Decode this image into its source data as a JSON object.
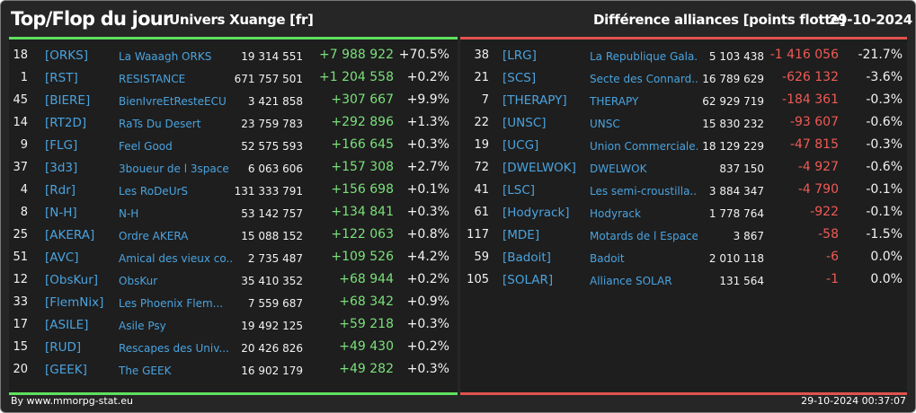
{
  "header": {
    "title": "Top/Flop du jour",
    "server": "Univers Xuange [fr]",
    "description": "Différence alliances [points flotte]",
    "date": "29-10-2024"
  },
  "colors": {
    "top_accent": "#5fe05f",
    "flop_accent": "#e0534f",
    "tag_color": "#4aa3df"
  },
  "top": [
    {
      "rank": "18",
      "tag": "[ORKS]",
      "name": "La Waaagh ORKS",
      "score": "19 314 551",
      "diff": "+7 988 922",
      "pct": "+70.5%"
    },
    {
      "rank": "1",
      "tag": "[RST]",
      "name": "RESISTANCE",
      "score": "671 757 501",
      "diff": "+1 204 558",
      "pct": "+0.2%"
    },
    {
      "rank": "45",
      "tag": "[BIERE]",
      "name": "BienIvreEtResteECU",
      "score": "3 421 858",
      "diff": "+307 667",
      "pct": "+9.9%"
    },
    {
      "rank": "14",
      "tag": "[RT2D]",
      "name": "RaTs Du Desert",
      "score": "23 759 783",
      "diff": "+292 896",
      "pct": "+1.3%"
    },
    {
      "rank": "9",
      "tag": "[FLG]",
      "name": "Feel Good",
      "score": "52 575 593",
      "diff": "+166 645",
      "pct": "+0.3%"
    },
    {
      "rank": "37",
      "tag": "[3d3]",
      "name": "3boueur de l 3space",
      "score": "6 063 606",
      "diff": "+157 308",
      "pct": "+2.7%"
    },
    {
      "rank": "4",
      "tag": "[Rdr]",
      "name": "Les RoDeUrS",
      "score": "131 333 791",
      "diff": "+156 698",
      "pct": "+0.1%"
    },
    {
      "rank": "8",
      "tag": "[N-H]",
      "name": "N-H",
      "score": "53 142 757",
      "diff": "+134 841",
      "pct": "+0.3%"
    },
    {
      "rank": "25",
      "tag": "[AKERA]",
      "name": "Ordre AKERA",
      "score": "15 088 152",
      "diff": "+122 063",
      "pct": "+0.8%"
    },
    {
      "rank": "51",
      "tag": "[AVC]",
      "name": "Amical des vieux co...",
      "score": "2 735 487",
      "diff": "+109 526",
      "pct": "+4.2%"
    },
    {
      "rank": "12",
      "tag": "[ObsKur]",
      "name": "ObsKur",
      "score": "35 410 352",
      "diff": "+68 944",
      "pct": "+0.2%"
    },
    {
      "rank": "33",
      "tag": "[FlemNix]",
      "name": "Les Phoenix Flem...",
      "score": "7 559 687",
      "diff": "+68 342",
      "pct": "+0.9%"
    },
    {
      "rank": "17",
      "tag": "[ASILE]",
      "name": "Asile Psy",
      "score": "19 492 125",
      "diff": "+59 218",
      "pct": "+0.3%"
    },
    {
      "rank": "15",
      "tag": "[RUD]",
      "name": "Rescapes des Univ...",
      "score": "20 426 826",
      "diff": "+49 430",
      "pct": "+0.2%"
    },
    {
      "rank": "20",
      "tag": "[GEEK]",
      "name": "The GEEK",
      "score": "16 902 179",
      "diff": "+49 282",
      "pct": "+0.3%"
    }
  ],
  "flop": [
    {
      "rank": "38",
      "tag": "[LRG]",
      "name": "La Republique Gala...",
      "score": "5 103 438",
      "diff": "-1 416 056",
      "pct": "-21.7%"
    },
    {
      "rank": "21",
      "tag": "[SCS]",
      "name": "Secte des Connard...",
      "score": "16 789 629",
      "diff": "-626 132",
      "pct": "-3.6%"
    },
    {
      "rank": "7",
      "tag": "[THERAPY]",
      "name": "THERAPY",
      "score": "62 929 719",
      "diff": "-184 361",
      "pct": "-0.3%"
    },
    {
      "rank": "22",
      "tag": "[UNSC]",
      "name": "UNSC",
      "score": "15 830 232",
      "diff": "-93 607",
      "pct": "-0.6%"
    },
    {
      "rank": "19",
      "tag": "[UCG]",
      "name": "Union Commerciale...",
      "score": "18 129 229",
      "diff": "-47 815",
      "pct": "-0.3%"
    },
    {
      "rank": "72",
      "tag": "[DWELWOK]",
      "name": "DWELWOK",
      "score": "837 150",
      "diff": "-4 927",
      "pct": "-0.6%"
    },
    {
      "rank": "41",
      "tag": "[LSC]",
      "name": "Les semi-croustilla...",
      "score": "3 884 347",
      "diff": "-4 790",
      "pct": "-0.1%"
    },
    {
      "rank": "61",
      "tag": "[Hodyrack]",
      "name": "Hodyrack",
      "score": "1 778 764",
      "diff": "-922",
      "pct": "-0.1%"
    },
    {
      "rank": "117",
      "tag": "[MDE]",
      "name": "Motards de l Espace",
      "score": "3 867",
      "diff": "-58",
      "pct": "-1.5%"
    },
    {
      "rank": "59",
      "tag": "[Badoit]",
      "name": "Badoit",
      "score": "2 010 118",
      "diff": "-6",
      "pct": "0.0%"
    },
    {
      "rank": "105",
      "tag": "[SOLAR]",
      "name": "Alliance SOLAR",
      "score": "131 564",
      "diff": "-1",
      "pct": "0.0%"
    }
  ],
  "footer": {
    "credit": "By www.mmorpg-stat.eu",
    "timestamp": "29-10-2024 00:37:07"
  }
}
